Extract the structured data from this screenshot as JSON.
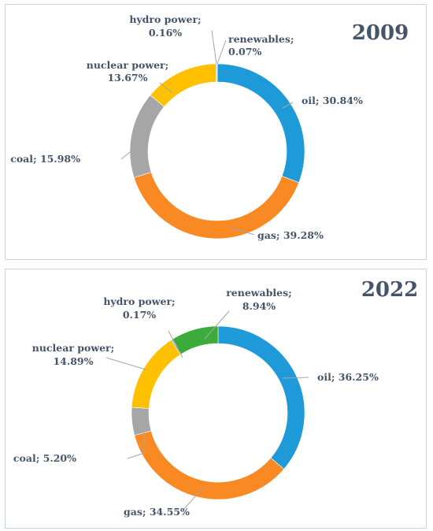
{
  "chart_data": [
    {
      "type": "pie",
      "title": "2009",
      "categories": [
        "oil",
        "gas",
        "coal",
        "nuclear power",
        "hydro power",
        "renewables"
      ],
      "values": [
        30.84,
        39.28,
        15.98,
        13.67,
        0.16,
        0.07
      ],
      "labels": [
        "oil; 30.84%",
        "gas; 39.28%",
        "coal; 15.98%",
        "nuclear power; 13.67%",
        "hydro power; 0.16%",
        "renewables; 0.07%"
      ],
      "colors": [
        "#1f9ad8",
        "#f98a23",
        "#a6a6a6",
        "#ffc000",
        "#2e75b6",
        "#3cab3c"
      ],
      "legend": "none"
    },
    {
      "type": "pie",
      "title": "2022",
      "categories": [
        "oil",
        "gas",
        "coal",
        "nuclear power",
        "hydro power",
        "renewables"
      ],
      "values": [
        36.25,
        34.55,
        5.2,
        14.89,
        0.17,
        8.94
      ],
      "labels": [
        "oil; 36.25%",
        "gas; 34.55%",
        "coal; 5.20%",
        "nuclear power; 14.89%",
        "hydro power; 0.17%",
        "renewables; 8.94%"
      ],
      "colors": [
        "#1f9ad8",
        "#f98a23",
        "#a6a6a6",
        "#ffc000",
        "#2e75b6",
        "#3cab3c"
      ],
      "legend": "none"
    }
  ]
}
